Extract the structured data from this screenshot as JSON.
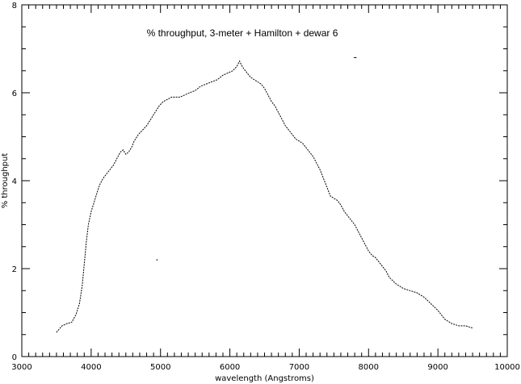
{
  "chart_data": {
    "type": "line",
    "title": "% throughput, 3-meter + Hamilton + dewar 6",
    "xlabel": "wavelength (Angstroms)",
    "ylabel": "% throughput",
    "xlim": [
      3000,
      10000
    ],
    "ylim": [
      0,
      8
    ],
    "x_ticks": [
      3000,
      4000,
      5000,
      6000,
      7000,
      8000,
      9000,
      10000
    ],
    "y_ticks": [
      0,
      2,
      4,
      6,
      8
    ],
    "x_tick_labels": [
      "3000",
      "4000",
      "5000",
      "6000",
      "7000",
      "8000",
      "9000",
      "10000"
    ],
    "y_tick_labels": [
      "0",
      "2",
      "4",
      "6",
      "8"
    ],
    "grid": false,
    "line_style": "dotted",
    "line_color": "#000000",
    "series": [
      {
        "x": [
          3500,
          3580,
          3650,
          3720,
          3780,
          3830,
          3870,
          3900,
          3930,
          3960,
          4000,
          4040,
          4080,
          4120,
          4170,
          4220,
          4270,
          4320,
          4370,
          4420,
          4460,
          4500,
          4540,
          4580,
          4620,
          4680,
          4740,
          4800,
          4860,
          4920,
          4980,
          5040,
          5100,
          5160,
          5220,
          5280,
          5350,
          5420,
          5500,
          5580,
          5660,
          5740,
          5820,
          5900,
          5970,
          6040,
          6100,
          6140,
          6170,
          6200,
          6250,
          6300,
          6350,
          6400,
          6450,
          6500,
          6550,
          6600,
          6650,
          6700,
          6750,
          6800,
          6850,
          6900,
          6950,
          7000,
          7050,
          7100,
          7150,
          7200,
          7250,
          7300,
          7350,
          7400,
          7450,
          7500,
          7550,
          7600,
          7650,
          7700,
          7750,
          7800,
          7850,
          7900,
          7950,
          8000,
          8050,
          8100,
          8150,
          8200,
          8250,
          8300,
          8400,
          8500,
          8600,
          8700,
          8800,
          8900,
          9000,
          9100,
          9200,
          9300,
          9400,
          9500
        ],
        "y": [
          0.55,
          0.7,
          0.75,
          0.78,
          0.95,
          1.2,
          1.6,
          2.1,
          2.6,
          3.0,
          3.3,
          3.5,
          3.7,
          3.9,
          4.05,
          4.15,
          4.25,
          4.35,
          4.5,
          4.65,
          4.7,
          4.6,
          4.65,
          4.75,
          4.9,
          5.05,
          5.15,
          5.25,
          5.4,
          5.55,
          5.7,
          5.8,
          5.85,
          5.9,
          5.9,
          5.9,
          5.95,
          6.0,
          6.05,
          6.15,
          6.2,
          6.25,
          6.3,
          6.4,
          6.45,
          6.5,
          6.6,
          6.72,
          6.62,
          6.55,
          6.45,
          6.35,
          6.3,
          6.25,
          6.2,
          6.1,
          5.95,
          5.8,
          5.7,
          5.55,
          5.4,
          5.25,
          5.15,
          5.05,
          4.95,
          4.9,
          4.85,
          4.75,
          4.65,
          4.55,
          4.4,
          4.25,
          4.05,
          3.85,
          3.65,
          3.6,
          3.55,
          3.45,
          3.3,
          3.2,
          3.1,
          3.0,
          2.85,
          2.7,
          2.55,
          2.4,
          2.3,
          2.25,
          2.15,
          2.05,
          1.95,
          1.8,
          1.65,
          1.55,
          1.5,
          1.45,
          1.35,
          1.2,
          1.05,
          0.85,
          0.75,
          0.7,
          0.7,
          0.65
        ]
      }
    ],
    "stray_points": [
      {
        "x": 7800,
        "y": 6.8
      },
      {
        "x": 7815,
        "y": 6.8
      },
      {
        "x": 4950,
        "y": 2.2
      }
    ]
  }
}
